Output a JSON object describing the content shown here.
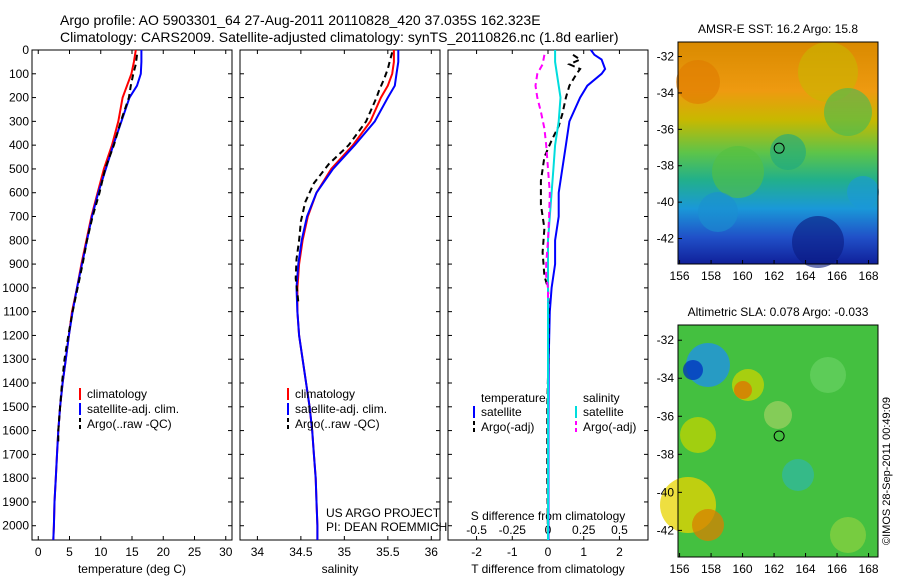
{
  "header": {
    "line1": "Argo profile: AO 5903301_64 27-Aug-2011 20110828_420 37.035S 162.323E",
    "line2": "Climatology: CARS2009. Satellite-adjusted climatology: synTS_20110826.nc (1.8d earlier)"
  },
  "side_text": "©IMOS 28-Sep-2011 00:49:09",
  "chart_data": [
    {
      "id": "temperature",
      "type": "line",
      "xlabel": "temperature (deg C)",
      "xlim": [
        -1,
        31
      ],
      "xticks": [
        0,
        5,
        10,
        15,
        20,
        25,
        30
      ],
      "ylim": [
        0,
        2060
      ],
      "yticks": [
        0,
        100,
        200,
        300,
        400,
        500,
        600,
        700,
        800,
        900,
        1000,
        1100,
        1200,
        1300,
        1400,
        1500,
        1600,
        1700,
        1800,
        1900,
        2000
      ],
      "legend": [
        "climatology",
        "satellite-adj. clim.",
        "Argo(..raw -QC)"
      ],
      "series": [
        {
          "name": "climatology",
          "color": "#ff0000",
          "style": "solid",
          "points": [
            [
              15.6,
              0
            ],
            [
              15.3,
              50
            ],
            [
              14.9,
              100
            ],
            [
              14.2,
              150
            ],
            [
              13.5,
              200
            ],
            [
              12.8,
              300
            ],
            [
              11.8,
              400
            ],
            [
              10.5,
              500
            ],
            [
              9.5,
              600
            ],
            [
              8.5,
              700
            ],
            [
              7.7,
              800
            ],
            [
              6.9,
              900
            ],
            [
              6.2,
              1000
            ],
            [
              5.4,
              1100
            ],
            [
              4.9,
              1200
            ],
            [
              4.4,
              1300
            ],
            [
              3.9,
              1400
            ],
            [
              3.5,
              1500
            ],
            [
              3.2,
              1600
            ],
            [
              3.0,
              1700
            ],
            [
              2.8,
              1800
            ],
            [
              2.6,
              1900
            ],
            [
              2.5,
              2000
            ],
            [
              2.4,
              2060
            ]
          ]
        },
        {
          "name": "satellite-adj. clim.",
          "color": "#0000ff",
          "style": "solid",
          "points": [
            [
              16.5,
              0
            ],
            [
              16.5,
              50
            ],
            [
              16.4,
              100
            ],
            [
              15.8,
              150
            ],
            [
              14.6,
              200
            ],
            [
              13.3,
              300
            ],
            [
              12.0,
              400
            ],
            [
              10.8,
              500
            ],
            [
              9.6,
              600
            ],
            [
              8.6,
              700
            ],
            [
              7.8,
              800
            ],
            [
              7.0,
              900
            ],
            [
              6.2,
              1000
            ],
            [
              5.5,
              1100
            ],
            [
              4.9,
              1200
            ],
            [
              4.4,
              1300
            ],
            [
              3.9,
              1400
            ],
            [
              3.5,
              1500
            ],
            [
              3.2,
              1600
            ],
            [
              3.0,
              1700
            ],
            [
              2.8,
              1800
            ],
            [
              2.6,
              1900
            ],
            [
              2.5,
              2000
            ],
            [
              2.4,
              2060
            ]
          ]
        },
        {
          "name": "Argo(..raw -QC)",
          "color": "#000000",
          "style": "dashed",
          "points": [
            [
              15.8,
              20
            ],
            [
              15.6,
              60
            ],
            [
              15.2,
              100
            ],
            [
              14.8,
              150
            ],
            [
              14.5,
              200
            ],
            [
              13.2,
              300
            ],
            [
              12.1,
              400
            ],
            [
              10.7,
              500
            ],
            [
              9.8,
              600
            ],
            [
              8.7,
              700
            ],
            [
              7.8,
              800
            ],
            [
              7.1,
              900
            ],
            [
              6.3,
              1000
            ],
            [
              5.5,
              1100
            ],
            [
              4.8,
              1200
            ],
            [
              4.2,
              1300
            ],
            [
              3.8,
              1400
            ],
            [
              3.5,
              1500
            ],
            [
              3.2,
              1600
            ],
            [
              3.2,
              1650
            ]
          ]
        }
      ]
    },
    {
      "id": "salinity",
      "type": "line",
      "xlabel": "salinity",
      "xlim": [
        33.8,
        36.1
      ],
      "xticks": [
        34,
        34.5,
        35,
        35.5,
        36
      ],
      "ylim": [
        0,
        2060
      ],
      "legend": [
        "climatology",
        "satellite-adj. clim.",
        "Argo(..raw -QC)"
      ],
      "annotation": [
        "US ARGO PROJECT",
        "PI: DEAN ROEMMICH"
      ],
      "series": [
        {
          "name": "climatology",
          "color": "#ff0000",
          "style": "solid",
          "points": [
            [
              35.57,
              0
            ],
            [
              35.57,
              50
            ],
            [
              35.55,
              100
            ],
            [
              35.5,
              150
            ],
            [
              35.42,
              200
            ],
            [
              35.3,
              300
            ],
            [
              35.1,
              400
            ],
            [
              34.85,
              500
            ],
            [
              34.68,
              600
            ],
            [
              34.58,
              700
            ],
            [
              34.52,
              800
            ],
            [
              34.48,
              900
            ],
            [
              34.46,
              1000
            ],
            [
              34.46,
              1100
            ],
            [
              34.48,
              1200
            ],
            [
              34.52,
              1300
            ],
            [
              34.56,
              1400
            ],
            [
              34.6,
              1500
            ],
            [
              34.63,
              1600
            ],
            [
              34.65,
              1700
            ],
            [
              34.67,
              1800
            ],
            [
              34.68,
              1900
            ],
            [
              34.69,
              2000
            ],
            [
              34.69,
              2060
            ]
          ]
        },
        {
          "name": "satellite-adj. clim.",
          "color": "#0000ff",
          "style": "solid",
          "points": [
            [
              35.62,
              0
            ],
            [
              35.62,
              50
            ],
            [
              35.6,
              100
            ],
            [
              35.58,
              150
            ],
            [
              35.5,
              200
            ],
            [
              35.35,
              300
            ],
            [
              35.12,
              400
            ],
            [
              34.87,
              500
            ],
            [
              34.68,
              600
            ],
            [
              34.57,
              700
            ],
            [
              34.51,
              800
            ],
            [
              34.47,
              900
            ],
            [
              34.45,
              1000
            ],
            [
              34.46,
              1100
            ],
            [
              34.48,
              1200
            ],
            [
              34.52,
              1300
            ],
            [
              34.56,
              1400
            ],
            [
              34.6,
              1500
            ],
            [
              34.63,
              1600
            ],
            [
              34.65,
              1700
            ],
            [
              34.67,
              1800
            ],
            [
              34.68,
              1900
            ],
            [
              34.69,
              2000
            ],
            [
              34.69,
              2060
            ]
          ]
        },
        {
          "name": "Argo(..raw -QC)",
          "color": "#000000",
          "style": "dashed",
          "points": [
            [
              35.55,
              10
            ],
            [
              35.52,
              50
            ],
            [
              35.5,
              80
            ],
            [
              35.46,
              120
            ],
            [
              35.4,
              170
            ],
            [
              35.37,
              200
            ],
            [
              35.25,
              300
            ],
            [
              35.05,
              400
            ],
            [
              34.82,
              480
            ],
            [
              34.65,
              560
            ],
            [
              34.55,
              640
            ],
            [
              34.5,
              720
            ],
            [
              34.48,
              800
            ],
            [
              34.45,
              880
            ],
            [
              34.44,
              960
            ],
            [
              34.46,
              1020
            ],
            [
              34.47,
              1060
            ]
          ]
        }
      ]
    },
    {
      "id": "difference",
      "type": "line",
      "xlabel": "T difference from climatology",
      "xlabel2": "S difference from climatology",
      "xlim": [
        -2.8,
        2.8
      ],
      "xticks": [
        -2,
        -1,
        0,
        1,
        2
      ],
      "xticks2": [
        "-0.5",
        "-0.25",
        "0",
        "0.25",
        "0.5"
      ],
      "xticks2_pos": [
        -2,
        -1,
        0,
        1,
        2
      ],
      "ylim": [
        0,
        2060
      ],
      "legend_temperature_title": "temperature",
      "legend_salinity_title": "salinity",
      "legend_temperature": [
        "satellite",
        "Argo(-adj)"
      ],
      "legend_salinity": [
        "satellite",
        "Argo(-adj)"
      ],
      "series": [
        {
          "name": "T satellite",
          "color": "#0000ff",
          "style": "solid",
          "points": [
            [
              1.2,
              0
            ],
            [
              1.3,
              20
            ],
            [
              1.5,
              40
            ],
            [
              1.6,
              80
            ],
            [
              1.5,
              100
            ],
            [
              1.1,
              150
            ],
            [
              0.9,
              200
            ],
            [
              0.6,
              300
            ],
            [
              0.5,
              400
            ],
            [
              0.4,
              500
            ],
            [
              0.3,
              600
            ],
            [
              0.3,
              700
            ],
            [
              0.2,
              800
            ],
            [
              0.2,
              900
            ],
            [
              0.1,
              1000
            ],
            [
              0.05,
              1100
            ],
            [
              0.02,
              1300
            ],
            [
              0.01,
              1600
            ],
            [
              0.01,
              2060
            ]
          ]
        },
        {
          "name": "T Argo(-adj)",
          "color": "#000000",
          "style": "dashed",
          "points": [
            [
              0.7,
              20
            ],
            [
              0.9,
              40
            ],
            [
              0.6,
              60
            ],
            [
              0.9,
              80
            ],
            [
              0.8,
              100
            ],
            [
              0.6,
              150
            ],
            [
              0.5,
              200
            ],
            [
              0.4,
              270
            ],
            [
              0.3,
              320
            ],
            [
              0.1,
              380
            ],
            [
              -0.1,
              450
            ],
            [
              -0.2,
              550
            ],
            [
              -0.2,
              650
            ],
            [
              -0.1,
              750
            ],
            [
              -0.15,
              850
            ],
            [
              -0.1,
              950
            ],
            [
              0,
              1000
            ],
            [
              0.02,
              1100
            ],
            [
              0.01,
              1300
            ],
            [
              -0.02,
              1500
            ],
            [
              -0.02,
              1800
            ],
            [
              0,
              2060
            ]
          ]
        },
        {
          "name": "S satellite",
          "color": "#00dddd",
          "style": "solid",
          "points": [
            [
              0.2,
              0
            ],
            [
              0.2,
              50
            ],
            [
              0.25,
              100
            ],
            [
              0.3,
              150
            ],
            [
              0.35,
              200
            ],
            [
              0.3,
              300
            ],
            [
              0.2,
              400
            ],
            [
              0.15,
              500
            ],
            [
              0.1,
              600
            ],
            [
              0.05,
              700
            ],
            [
              0,
              800
            ],
            [
              0,
              1000
            ],
            [
              0,
              2060
            ]
          ]
        },
        {
          "name": "S Argo(-adj)",
          "color": "#ff00ff",
          "style": "dashed",
          "points": [
            [
              -0.1,
              20
            ],
            [
              -0.15,
              60
            ],
            [
              -0.3,
              100
            ],
            [
              -0.35,
              150
            ],
            [
              -0.3,
              200
            ],
            [
              -0.2,
              260
            ],
            [
              -0.1,
              330
            ],
            [
              -0.05,
              400
            ],
            [
              0,
              500
            ],
            [
              0.05,
              600
            ],
            [
              0.03,
              700
            ],
            [
              0,
              800
            ],
            [
              -0.05,
              900
            ],
            [
              -0.05,
              950
            ],
            [
              0,
              1000
            ],
            [
              0,
              1060
            ]
          ]
        }
      ]
    },
    {
      "id": "sst_map",
      "type": "heatmap",
      "title": "AMSR-E SST: 16.2 Argo: 15.8",
      "xlim": [
        155.9,
        168.6
      ],
      "ylim": [
        -43.4,
        -31.2
      ],
      "xticks": [
        156,
        158,
        160,
        162,
        164,
        166,
        168
      ],
      "yticks": [
        -32,
        -34,
        -36,
        -38,
        -40,
        -42
      ],
      "marker": [
        162.323,
        -37.035
      ]
    },
    {
      "id": "sla_map",
      "type": "heatmap",
      "title": "Altimetric SLA: 0.078 Argo: -0.033",
      "xlim": [
        155.9,
        168.6
      ],
      "ylim": [
        -43.4,
        -31.2
      ],
      "xticks": [
        156,
        158,
        160,
        162,
        164,
        166,
        168
      ],
      "yticks": [
        -32,
        -34,
        -36,
        -38,
        -40,
        -42
      ],
      "marker": [
        162.323,
        -37.035
      ]
    }
  ]
}
